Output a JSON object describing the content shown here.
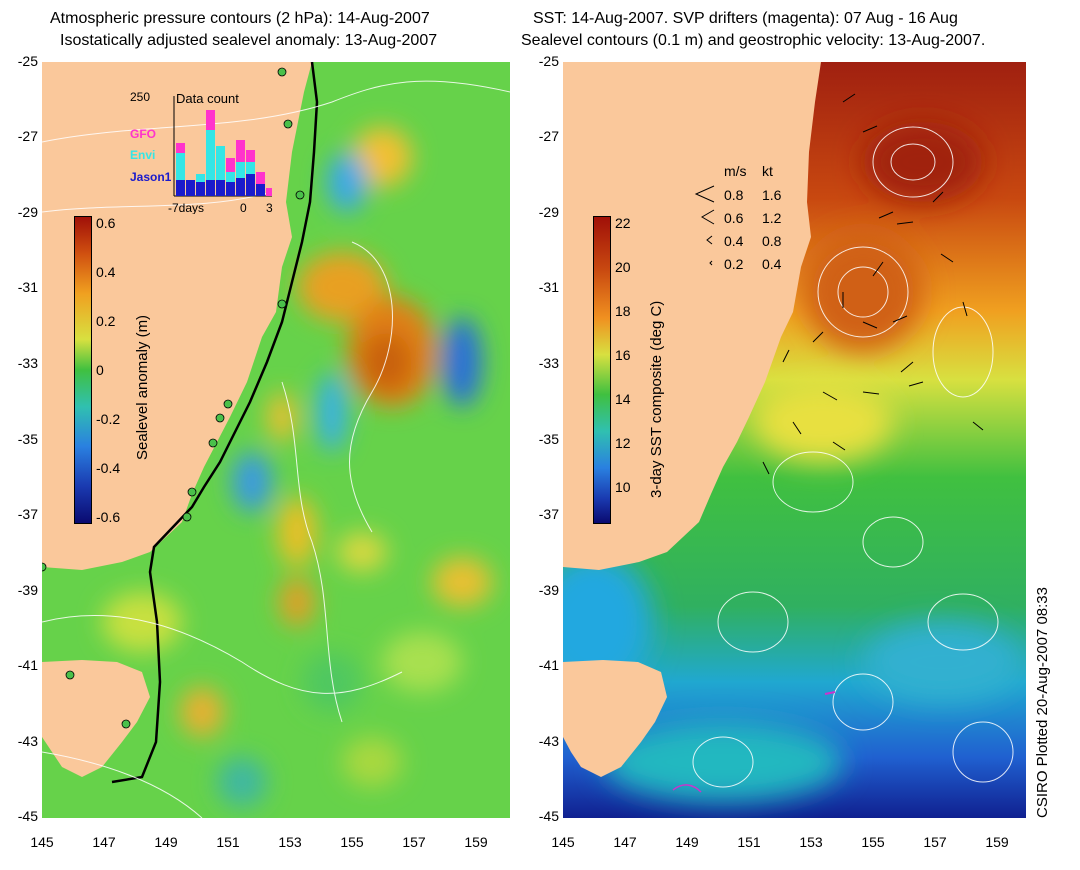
{
  "left_panel": {
    "title_line1": "Atmospheric pressure contours (2 hPa): 14-Aug-2007",
    "title_line2": "Isostatically adjusted sealevel anomaly: 13-Aug-2007",
    "colorbar": {
      "label": "Sealevel anomaly (m)",
      "ticks": [
        "0.6",
        "0.4",
        "0.2",
        "0",
        "-0.2",
        "-0.4",
        "-0.6"
      ]
    },
    "inset": {
      "title": "Data count",
      "max_label": "250",
      "legend": [
        {
          "label": "GFO",
          "color": "#ff33cc"
        },
        {
          "label": "Envi",
          "color": "#33e6e6"
        },
        {
          "label": "Jason1",
          "color": "#1a1acc"
        }
      ],
      "x_labels": [
        "-7days",
        "0",
        "3"
      ]
    }
  },
  "right_panel": {
    "title_line1": "SST: 14-Aug-2007. SVP drifters (magenta): 07 Aug - 16 Aug",
    "title_line2": "Sealevel contours (0.1 m) and geostrophic velocity: 13-Aug-2007.",
    "colorbar": {
      "label": "3-day SST composite (deg C)",
      "ticks": [
        "22",
        "20",
        "18",
        "16",
        "14",
        "12",
        "10"
      ]
    },
    "velocity_legend": {
      "header_ms": "m/s",
      "header_kt": "kt",
      "rows": [
        {
          "ms": "0.8",
          "kt": "1.6"
        },
        {
          "ms": "0.6",
          "kt": "1.2"
        },
        {
          "ms": "0.4",
          "kt": "0.8"
        },
        {
          "ms": "0.2",
          "kt": "0.4"
        }
      ]
    }
  },
  "axes": {
    "lat_ticks": [
      "-25",
      "-27",
      "-29",
      "-31",
      "-33",
      "-35",
      "-37",
      "-39",
      "-41",
      "-43",
      "-45"
    ],
    "lon_ticks": [
      "145",
      "147",
      "149",
      "151",
      "153",
      "155",
      "157",
      "159"
    ]
  },
  "credit": "CSIRO Plotted 20-Aug-2007 08:33",
  "colors": {
    "land": "#fac89b",
    "shelf_contour": "#000000",
    "pressure_contour": "#ffffff",
    "drifters": "#cc33cc"
  }
}
